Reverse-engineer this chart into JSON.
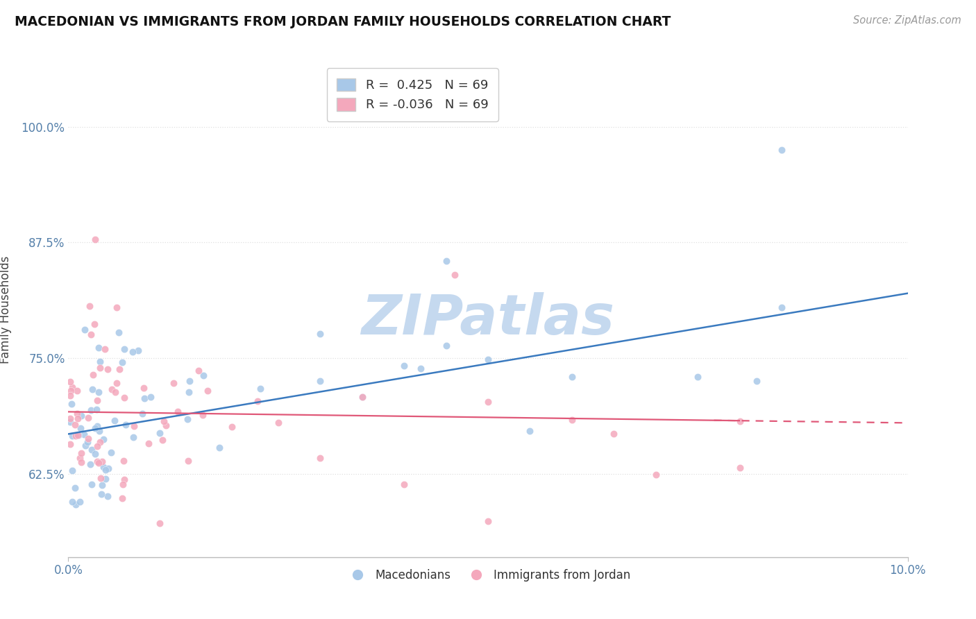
{
  "title": "MACEDONIAN VS IMMIGRANTS FROM JORDAN FAMILY HOUSEHOLDS CORRELATION CHART",
  "source": "Source: ZipAtlas.com",
  "ylabel": "Family Households",
  "blue_color": "#a8c8e8",
  "pink_color": "#f4a8bc",
  "blue_line_color": "#3a7abf",
  "pink_line_color": "#e05878",
  "r_blue": 0.425,
  "r_pink": -0.036,
  "n": 69,
  "watermark": "ZIPatlas",
  "watermark_color": "#c5d9ef",
  "background_color": "#ffffff",
  "grid_color": "#e0e0e0",
  "blue_line_start_y": 0.668,
  "blue_line_end_y": 0.82,
  "pink_line_start_y": 0.692,
  "pink_line_end_y": 0.68,
  "xlim": [
    0.0,
    10.0
  ],
  "ylim": [
    0.535,
    1.07
  ]
}
